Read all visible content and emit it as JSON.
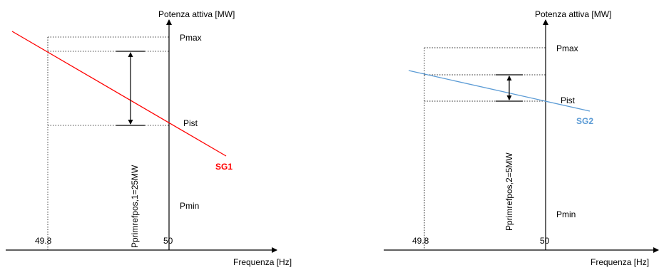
{
  "colors": {
    "sg1": "#ff0000",
    "sg2": "#5b9bd5",
    "axis": "#000000"
  },
  "left_panel": {
    "y_axis_label": "Potenza attiva [MW]",
    "x_axis_label": "Frequenza [Hz]",
    "pmax": "Pmax",
    "pist": "Pist",
    "pmin": "Pmin",
    "tick_low": "49.8",
    "tick_nominal": "50",
    "delta_label": "Pprimrefpos,1=25MW",
    "curve_label": "SG1"
  },
  "right_panel": {
    "y_axis_label": "Potenza attiva [MW]",
    "x_axis_label": "Frequenza [Hz]",
    "pmax": "Pmax",
    "pist": "Pist",
    "pmin": "Pmin",
    "tick_low": "49.8",
    "tick_nominal": "50",
    "delta_label": "Pprimrefpos,2=5MW",
    "curve_label": "SG2"
  }
}
